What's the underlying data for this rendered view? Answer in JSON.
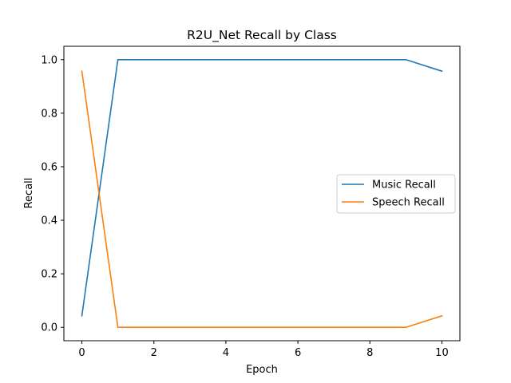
{
  "chart_data": {
    "type": "line",
    "title": "R2U_Net Recall by Class",
    "xlabel": "Epoch",
    "ylabel": "Recall",
    "xlim": [
      -0.5,
      10.5
    ],
    "ylim": [
      -0.05,
      1.05
    ],
    "xticks": [
      0,
      2,
      4,
      6,
      8,
      10
    ],
    "xtick_labels": [
      "0",
      "2",
      "4",
      "6",
      "8",
      "10"
    ],
    "yticks": [
      0.0,
      0.2,
      0.4,
      0.6,
      0.8,
      1.0
    ],
    "ytick_labels": [
      "0.0",
      "0.2",
      "0.4",
      "0.6",
      "0.8",
      "1.0"
    ],
    "grid": false,
    "legend_position": "center-right",
    "x": [
      0,
      1,
      2,
      3,
      4,
      5,
      6,
      7,
      8,
      9,
      10
    ],
    "series": [
      {
        "name": "Music Recall",
        "color": "#1f77b4",
        "values": [
          0.043,
          1.0,
          1.0,
          1.0,
          1.0,
          1.0,
          1.0,
          1.0,
          1.0,
          1.0,
          0.957
        ]
      },
      {
        "name": "Speech Recall",
        "color": "#ff7f0e",
        "values": [
          0.957,
          0.0,
          0.0,
          0.0,
          0.0,
          0.0,
          0.0,
          0.0,
          0.0,
          0.0,
          0.043
        ]
      }
    ]
  }
}
